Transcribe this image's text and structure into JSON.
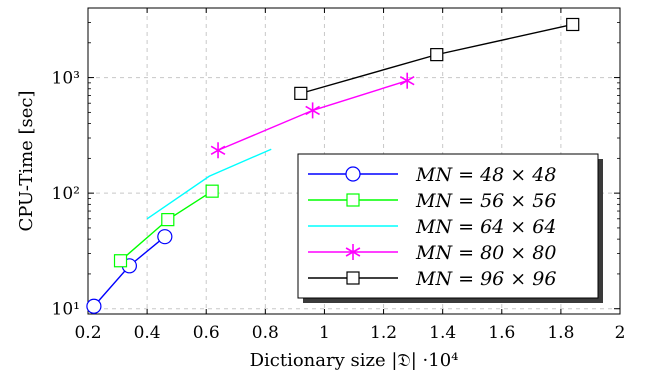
{
  "chart_data": {
    "type": "line",
    "xlabel": "Dictionary size |𝔇| ·10⁴",
    "ylabel": "CPU-Time [sec]",
    "xlim": [
      0.2,
      2.0
    ],
    "ylim": [
      9,
      4000
    ],
    "yscale": "log",
    "grid": true,
    "legend_position": "bottom-right",
    "x_ticks": [
      0.2,
      0.4,
      0.6,
      0.8,
      1.0,
      1.2,
      1.4,
      1.6,
      1.8,
      2.0
    ],
    "x_tick_labels": [
      "0.2",
      "0.4",
      "0.6",
      "0.8",
      "1",
      "1.2",
      "1.4",
      "1.6",
      "1.8",
      "2"
    ],
    "y_ticks": [
      10,
      100,
      1000
    ],
    "y_tick_labels": [
      "10¹",
      "10²",
      "10³"
    ],
    "series": [
      {
        "name": "MN = 48 × 48",
        "color": "#0000ff",
        "marker": "circle",
        "x": [
          0.22,
          0.34,
          0.46
        ],
        "y": [
          10.5,
          23.5,
          42
        ]
      },
      {
        "name": "MN = 56 × 56",
        "color": "#00ff00",
        "marker": "square",
        "x": [
          0.31,
          0.47,
          0.62
        ],
        "y": [
          26,
          59,
          104
        ]
      },
      {
        "name": "MN = 64 × 64",
        "color": "#00ffff",
        "marker": "none",
        "x": [
          0.4,
          0.61,
          0.82
        ],
        "y": [
          60,
          140,
          240
        ]
      },
      {
        "name": "MN = 80 × 80",
        "color": "#ff00ff",
        "marker": "asterisk",
        "x": [
          0.64,
          0.96,
          1.28
        ],
        "y": [
          235,
          520,
          940
        ]
      },
      {
        "name": "MN = 96 × 96",
        "color": "#000000",
        "marker": "square",
        "x": [
          0.92,
          1.38,
          1.84
        ],
        "y": [
          730,
          1580,
          2880
        ]
      }
    ]
  }
}
